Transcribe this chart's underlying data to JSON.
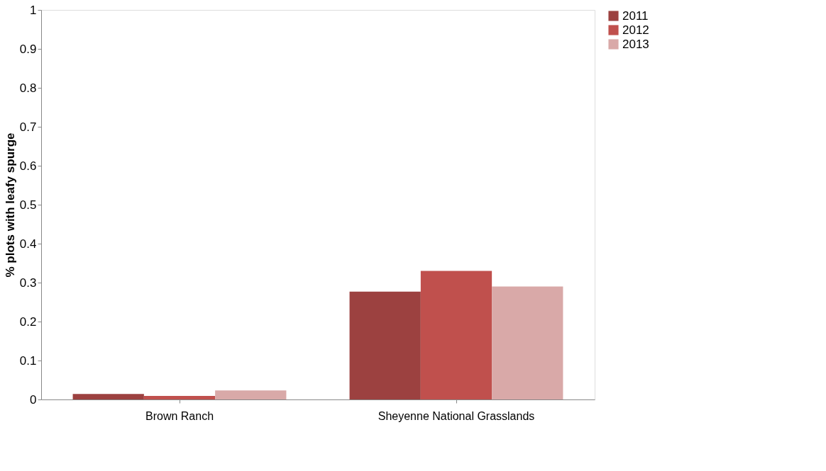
{
  "chart_data": {
    "type": "bar",
    "ylabel": "% plots with leafy spurge",
    "categories": [
      "Brown Ranch",
      "Sheyenne National Grasslands"
    ],
    "series": [
      {
        "name": "2011",
        "color": "#9c4140",
        "values": [
          0.014,
          0.277
        ]
      },
      {
        "name": "2012",
        "color": "#c0504d",
        "values": [
          0.009,
          0.33
        ]
      },
      {
        "name": "2013",
        "color": "#d9a9a8",
        "values": [
          0.023,
          0.29
        ]
      }
    ],
    "ylim": [
      0,
      1
    ],
    "yticks": [
      0,
      0.1,
      0.2,
      0.3,
      0.4,
      0.5,
      0.6,
      0.7,
      0.8,
      0.9,
      1
    ],
    "grid": false,
    "legend": "right"
  }
}
